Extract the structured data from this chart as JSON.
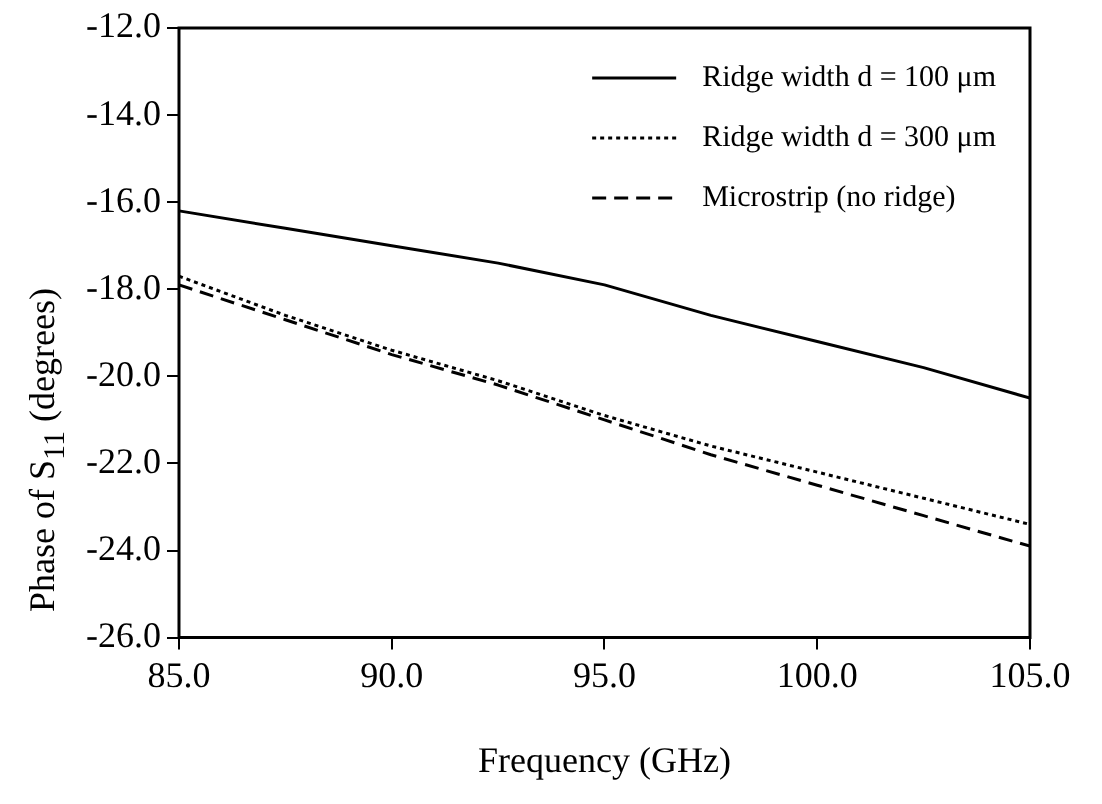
{
  "chart_data": {
    "type": "line",
    "xlabel": "Frequency (GHz)",
    "ylabel": "Phase of S$_{11}$ (degrees)",
    "x": [
      85,
      87.5,
      90,
      92.5,
      95,
      97.5,
      100,
      102.5,
      105
    ],
    "series": [
      {
        "name": "Ridge width d = 100 μm",
        "color": "#000000",
        "line_style": "solid",
        "values": [
          -16.2,
          -16.6,
          -17.0,
          -17.4,
          -17.9,
          -18.6,
          -19.2,
          -19.8,
          -20.5
        ]
      },
      {
        "name": "Ridge width d = 300 μm",
        "color": "#000000",
        "line_style": "dotted",
        "values": [
          -17.7,
          -18.6,
          -19.4,
          -20.1,
          -20.9,
          -21.6,
          -22.2,
          -22.8,
          -23.4
        ]
      },
      {
        "name": "Microstrip (no ridge)",
        "color": "#000000",
        "line_style": "dashed",
        "values": [
          -17.9,
          -18.7,
          -19.5,
          -20.2,
          -21.0,
          -21.8,
          -22.5,
          -23.2,
          -23.9
        ]
      }
    ],
    "xlim": [
      85,
      105
    ],
    "xticks": [
      {
        "value": 85,
        "label": "85.0"
      },
      {
        "value": 90,
        "label": "90.0"
      },
      {
        "value": 95,
        "label": "95.0"
      },
      {
        "value": 100,
        "label": "100.0"
      },
      {
        "value": 105,
        "label": "105.0"
      }
    ],
    "ylim": [
      -26,
      -12
    ],
    "yticks": [
      {
        "value": -26,
        "label": "-26.0"
      },
      {
        "value": -24,
        "label": "-24.0"
      },
      {
        "value": -22,
        "label": "-22.0"
      },
      {
        "value": -20,
        "label": "-20.0"
      },
      {
        "value": -18,
        "label": "-18.0"
      },
      {
        "value": -16,
        "label": "-16.0"
      },
      {
        "value": -14,
        "label": "-14.0"
      },
      {
        "value": -12,
        "label": "-12.0"
      }
    ],
    "grid": false,
    "legend": "top right",
    "marker": "none"
  }
}
